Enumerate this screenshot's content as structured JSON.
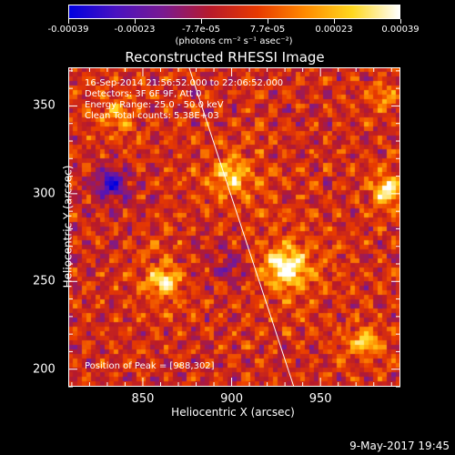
{
  "colorbar": {
    "tick_labels": [
      "-0.00039",
      "-0.00023",
      "-7.7e-05",
      "7.7e-05",
      "0.00023",
      "0.00039"
    ],
    "units": "(photons cm⁻² s⁻¹ asec⁻²)",
    "colormap": [
      "#0000e0",
      "#4a12c0",
      "#7a1a90",
      "#b81a2a",
      "#e83a00",
      "#ff8a00",
      "#ffd81e",
      "#ffffff"
    ]
  },
  "annotations": {
    "time_range": "16-Sep-2014 21:56:52.000 to 22:06:52.000",
    "detectors": "Detectors: 3F 6F 9F, Att 0",
    "energy": "Energy Range: 25.0 - 50.0 keV",
    "clean": "Clean     Total counts: 5.38E+03",
    "peak": "Position of Peak = [988,302]",
    "footer": "9-May-2017 19:45"
  },
  "chart_data": {
    "type": "heatmap",
    "title": "Reconstructed RHESSI Image",
    "xlabel": "Heliocentric X (arcsec)",
    "ylabel": "Heliocentric Y (arcsec)",
    "xlim": [
      808,
      995
    ],
    "ylim": [
      190,
      372
    ],
    "x_ticks": [
      850,
      900,
      950
    ],
    "y_ticks": [
      200,
      250,
      300,
      350
    ],
    "value_range": [
      -0.00039,
      0.00039
    ],
    "peak_position": [
      988,
      302
    ],
    "limb_line": [
      [
        876,
        372
      ],
      [
        935,
        190
      ]
    ],
    "sources": [
      {
        "x": 930,
        "y": 258,
        "sigma": 14,
        "amp": 0.00039
      },
      {
        "x": 862,
        "y": 250,
        "sigma": 10,
        "amp": 0.00033
      },
      {
        "x": 988,
        "y": 302,
        "sigma": 8,
        "amp": 0.00039
      },
      {
        "x": 900,
        "y": 310,
        "sigma": 12,
        "amp": 0.00028
      },
      {
        "x": 975,
        "y": 215,
        "sigma": 9,
        "amp": 0.00028
      },
      {
        "x": 835,
        "y": 345,
        "sigma": 11,
        "amp": 0.00018
      },
      {
        "x": 985,
        "y": 355,
        "sigma": 7,
        "amp": 0.0002
      },
      {
        "x": 832,
        "y": 306,
        "sigma": 9,
        "amp": -0.0003
      },
      {
        "x": 900,
        "y": 258,
        "sigma": 12,
        "amp": -0.00015
      }
    ]
  }
}
